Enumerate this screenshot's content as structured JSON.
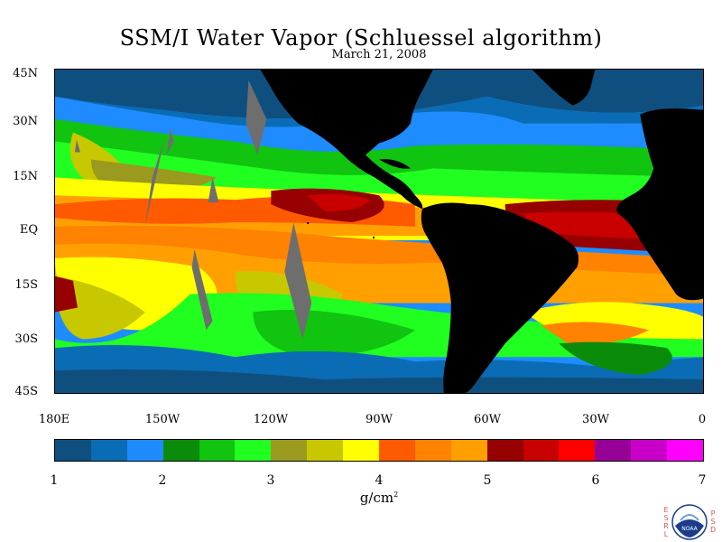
{
  "title": "SSM/I Water Vapor (Schluessel algorithm)",
  "date": "March 21, 2008",
  "map": {
    "lat_range": [
      -45,
      45
    ],
    "lon_range": [
      -180,
      0
    ],
    "latitude_ticks": [
      "45N",
      "30N",
      "15N",
      "EQ",
      "15S",
      "30S",
      "45S"
    ],
    "longitude_ticks": [
      "180E",
      "150W",
      "120W",
      "90W",
      "60W",
      "30W",
      "0"
    ],
    "land_color": "#000000",
    "missing_data_color": "#6e6e6e"
  },
  "colorbar": {
    "unit": "g/cm",
    "unit_superscript": "2",
    "range": [
      1,
      7
    ],
    "labels": [
      "1",
      "2",
      "3",
      "4",
      "5",
      "6",
      "7"
    ],
    "colors": [
      "#0f4f7f",
      "#0a6cb4",
      "#1e8cff",
      "#0a8c0a",
      "#10c410",
      "#20ff20",
      "#9a9a1e",
      "#c8c800",
      "#ffff00",
      "#ff5a00",
      "#ff8200",
      "#ffa000",
      "#960000",
      "#c80000",
      "#ff0000",
      "#960096",
      "#c800c8",
      "#ff00ff"
    ]
  },
  "logo": {
    "left_letters": [
      "E",
      "S",
      "R",
      "L"
    ],
    "center_text": "NOAA",
    "right_letters": [
      "P",
      "S",
      "D"
    ]
  }
}
